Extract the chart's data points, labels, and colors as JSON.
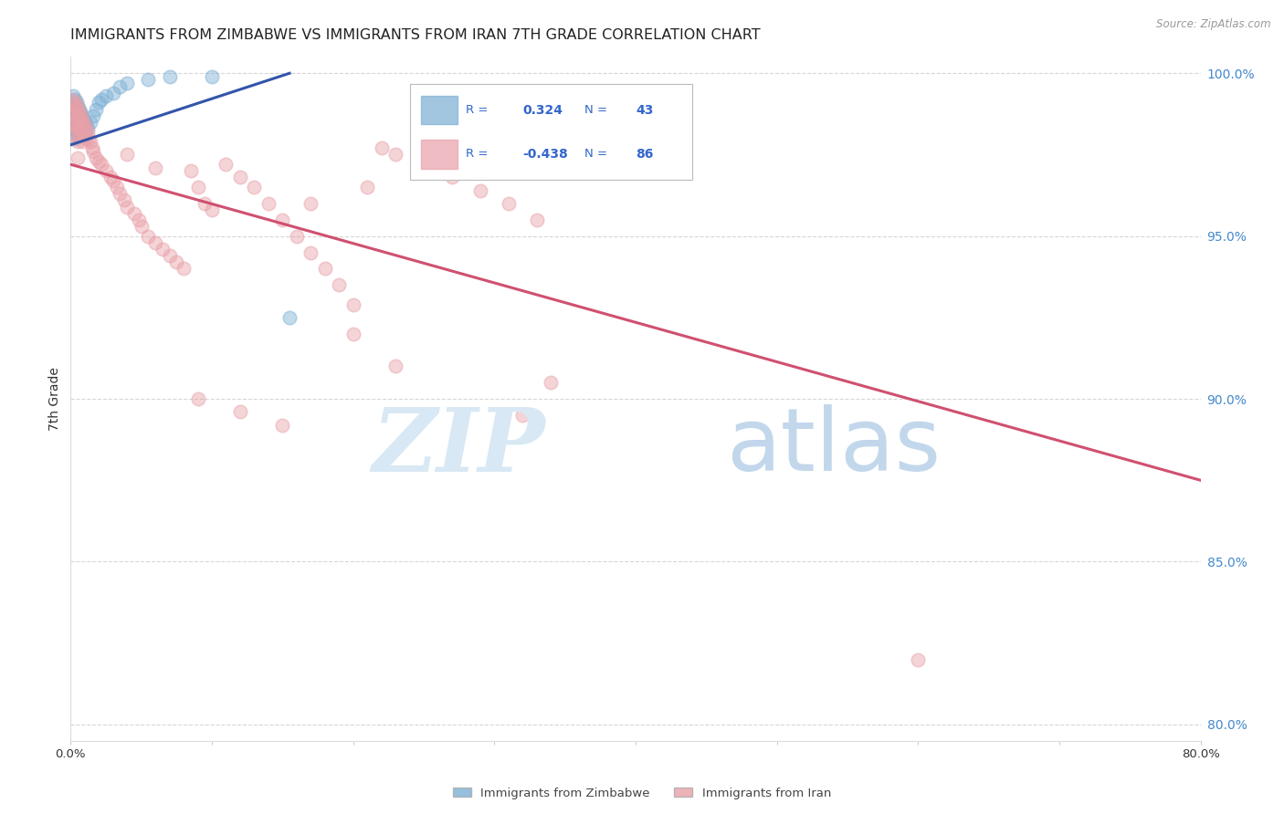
{
  "title": "IMMIGRANTS FROM ZIMBABWE VS IMMIGRANTS FROM IRAN 7TH GRADE CORRELATION CHART",
  "source": "Source: ZipAtlas.com",
  "ylabel": "7th Grade",
  "xlim": [
    0.0,
    0.8
  ],
  "ylim": [
    0.795,
    1.005
  ],
  "ytick_labels": [
    "80.0%",
    "85.0%",
    "90.0%",
    "95.0%",
    "100.0%"
  ],
  "ytick_vals": [
    0.8,
    0.85,
    0.9,
    0.95,
    1.0
  ],
  "xtick_vals": [
    0.0,
    0.1,
    0.2,
    0.3,
    0.4,
    0.5,
    0.6,
    0.7,
    0.8
  ],
  "blue_color": "#7bafd4",
  "pink_color": "#e8a0a8",
  "blue_line_color": "#3355aa",
  "pink_line_color": "#d05070",
  "legend_R_blue": "0.324",
  "legend_N_blue": "43",
  "legend_R_pink": "-0.438",
  "legend_N_pink": "86",
  "legend_text_color": "#3366cc",
  "right_axis_color": "#4488cc",
  "watermark_zip_color": "#d8e8f4",
  "watermark_atlas_color": "#b8d0e8",
  "background_color": "#ffffff",
  "blue_scatter_x": [
    0.002,
    0.002,
    0.002,
    0.003,
    0.003,
    0.003,
    0.003,
    0.003,
    0.004,
    0.004,
    0.004,
    0.004,
    0.005,
    0.005,
    0.005,
    0.005,
    0.006,
    0.006,
    0.006,
    0.007,
    0.007,
    0.007,
    0.008,
    0.008,
    0.009,
    0.009,
    0.01,
    0.01,
    0.011,
    0.012,
    0.014,
    0.016,
    0.018,
    0.02,
    0.022,
    0.025,
    0.03,
    0.035,
    0.04,
    0.055,
    0.07,
    0.1,
    0.155
  ],
  "blue_scatter_y": [
    0.993,
    0.99,
    0.986,
    0.992,
    0.989,
    0.986,
    0.983,
    0.98,
    0.991,
    0.988,
    0.985,
    0.982,
    0.99,
    0.987,
    0.984,
    0.981,
    0.989,
    0.986,
    0.982,
    0.988,
    0.985,
    0.981,
    0.987,
    0.984,
    0.986,
    0.983,
    0.985,
    0.982,
    0.984,
    0.983,
    0.985,
    0.987,
    0.989,
    0.991,
    0.992,
    0.993,
    0.994,
    0.996,
    0.997,
    0.998,
    0.999,
    0.999,
    0.925
  ],
  "pink_scatter_x": [
    0.001,
    0.002,
    0.002,
    0.002,
    0.003,
    0.003,
    0.003,
    0.003,
    0.004,
    0.004,
    0.004,
    0.005,
    0.005,
    0.005,
    0.005,
    0.006,
    0.006,
    0.006,
    0.007,
    0.007,
    0.008,
    0.008,
    0.008,
    0.009,
    0.009,
    0.01,
    0.01,
    0.011,
    0.012,
    0.013,
    0.014,
    0.015,
    0.016,
    0.018,
    0.02,
    0.022,
    0.025,
    0.028,
    0.03,
    0.033,
    0.035,
    0.038,
    0.04,
    0.045,
    0.048,
    0.05,
    0.055,
    0.06,
    0.065,
    0.07,
    0.075,
    0.08,
    0.085,
    0.09,
    0.095,
    0.1,
    0.11,
    0.12,
    0.13,
    0.14,
    0.15,
    0.16,
    0.17,
    0.18,
    0.19,
    0.2,
    0.21,
    0.22,
    0.23,
    0.25,
    0.27,
    0.29,
    0.31,
    0.33,
    0.005,
    0.04,
    0.06,
    0.09,
    0.12,
    0.15,
    0.17,
    0.2,
    0.23,
    0.6,
    0.32,
    0.34
  ],
  "pink_scatter_y": [
    0.992,
    0.99,
    0.987,
    0.984,
    0.991,
    0.988,
    0.985,
    0.981,
    0.99,
    0.986,
    0.983,
    0.989,
    0.986,
    0.983,
    0.979,
    0.988,
    0.985,
    0.981,
    0.987,
    0.983,
    0.986,
    0.983,
    0.979,
    0.985,
    0.981,
    0.984,
    0.98,
    0.983,
    0.982,
    0.98,
    0.979,
    0.977,
    0.976,
    0.974,
    0.973,
    0.972,
    0.97,
    0.968,
    0.967,
    0.965,
    0.963,
    0.961,
    0.959,
    0.957,
    0.955,
    0.953,
    0.95,
    0.948,
    0.946,
    0.944,
    0.942,
    0.94,
    0.97,
    0.965,
    0.96,
    0.958,
    0.972,
    0.968,
    0.965,
    0.96,
    0.955,
    0.95,
    0.945,
    0.94,
    0.935,
    0.929,
    0.965,
    0.977,
    0.975,
    0.972,
    0.968,
    0.964,
    0.96,
    0.955,
    0.974,
    0.975,
    0.971,
    0.9,
    0.896,
    0.892,
    0.96,
    0.92,
    0.91,
    0.82,
    0.895,
    0.905
  ],
  "blue_line_x": [
    0.0,
    0.155
  ],
  "blue_line_y": [
    0.978,
    1.0
  ],
  "pink_line_x": [
    0.0,
    0.8
  ],
  "pink_line_y": [
    0.972,
    0.875
  ],
  "grid_color": "#cccccc",
  "title_fontsize": 11.5,
  "axis_label_fontsize": 10,
  "tick_fontsize": 9.5
}
